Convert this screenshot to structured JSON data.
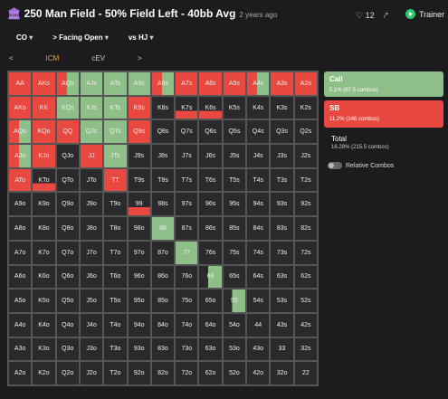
{
  "header": {
    "title": "250 Man Field - 50% Field Left - 40bb Avg",
    "time": "2 years ago",
    "likes": "12",
    "trainer": "Trainer"
  },
  "filters": [
    "CO",
    "Facing Open",
    "vs HJ"
  ],
  "tabs": [
    "ICM",
    "cEV"
  ],
  "grid": [
    [
      "AA",
      "AKs",
      "AQs",
      "AJs",
      "ATs",
      "A9s",
      "A8s",
      "A7s",
      "A6s",
      "A5s",
      "A4s",
      "A3s",
      "A2s"
    ],
    [
      "AKo",
      "KK",
      "KQs",
      "KJs",
      "KTs",
      "K9s",
      "K8s",
      "K7s",
      "K6s",
      "K5s",
      "K4s",
      "K3s",
      "K2s"
    ],
    [
      "AQo",
      "KQo",
      "QQ",
      "QJs",
      "QTs",
      "Q9s",
      "Q8s",
      "Q7s",
      "Q6s",
      "Q5s",
      "Q4s",
      "Q3s",
      "Q2s"
    ],
    [
      "AJo",
      "KJo",
      "QJo",
      "JJ",
      "JTs",
      "J9s",
      "J8s",
      "J7s",
      "J6s",
      "J5s",
      "J4s",
      "J3s",
      "J2s"
    ],
    [
      "ATo",
      "KTo",
      "QTo",
      "JTo",
      "TT",
      "T9s",
      "T8s",
      "T7s",
      "T6s",
      "T5s",
      "T4s",
      "T3s",
      "T2s"
    ],
    [
      "A9o",
      "K9o",
      "Q9o",
      "J9o",
      "T9o",
      "99",
      "98s",
      "97s",
      "96s",
      "95s",
      "94s",
      "93s",
      "92s"
    ],
    [
      "A8o",
      "K8o",
      "Q8o",
      "J8o",
      "T8o",
      "98o",
      "88",
      "87s",
      "86s",
      "85s",
      "84s",
      "83s",
      "82s"
    ],
    [
      "A7o",
      "K7o",
      "Q7o",
      "J7o",
      "T7o",
      "97o",
      "87o",
      "77",
      "76s",
      "75s",
      "74s",
      "73s",
      "72s"
    ],
    [
      "A6o",
      "K6o",
      "Q6o",
      "J6o",
      "T6o",
      "96o",
      "86o",
      "76o",
      "66",
      "65s",
      "64s",
      "63s",
      "62s"
    ],
    [
      "A5o",
      "K5o",
      "Q5o",
      "J5o",
      "T5o",
      "95o",
      "85o",
      "75o",
      "65o",
      "55",
      "54s",
      "53s",
      "52s"
    ],
    [
      "A4o",
      "K4o",
      "Q4o",
      "J4o",
      "T4o",
      "94o",
      "84o",
      "74o",
      "64o",
      "54o",
      "44",
      "43s",
      "42s"
    ],
    [
      "A3o",
      "K3o",
      "Q3o",
      "J3o",
      "T3o",
      "93o",
      "83o",
      "73o",
      "63o",
      "53o",
      "43o",
      "33",
      "32s"
    ],
    [
      "A2o",
      "K2o",
      "Q2o",
      "J2o",
      "T2o",
      "92o",
      "82o",
      "72o",
      "62o",
      "52o",
      "42o",
      "32o",
      "22"
    ]
  ],
  "panel": {
    "call": {
      "label": "Call",
      "detail": "5.1% (67.5 combos)"
    },
    "sb": {
      "label": "SB",
      "detail": "11.2% (148 combos)"
    },
    "total": {
      "label": "Total",
      "detail": "16.28% (215.5 combos)"
    },
    "toggle": "Relative Combos"
  }
}
